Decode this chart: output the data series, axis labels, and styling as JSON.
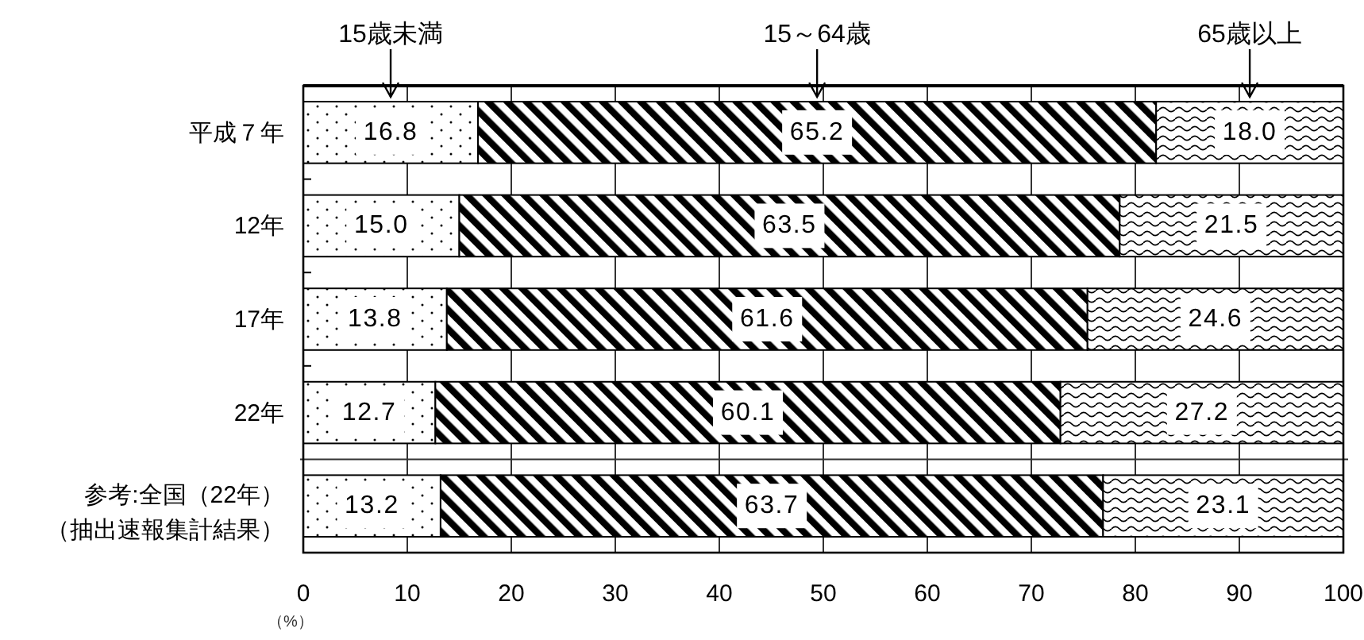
{
  "chart_data": {
    "type": "bar",
    "orientation": "horizontal",
    "stacked": true,
    "categories": [
      "平成７年",
      "12年",
      "17年",
      "22年",
      "参考:全国（22年）（抽出速報集計結果）"
    ],
    "series": [
      {
        "name": "15歳未満",
        "color": "#000000",
        "values": [
          16.8,
          15.0,
          13.8,
          12.7,
          13.2
        ],
        "value_labels": [
          "16.8",
          "15.0",
          "13.8",
          "12.7",
          "13.2"
        ]
      },
      {
        "name": "15～64歳",
        "color": "#000000",
        "values": [
          65.2,
          63.5,
          61.6,
          60.1,
          63.7
        ],
        "value_labels": [
          "65.2",
          "63.5",
          "61.6",
          "60.1",
          "63.7"
        ]
      },
      {
        "name": "65歳以上",
        "color": "#000000",
        "values": [
          18.0,
          21.5,
          24.6,
          27.2,
          23.1
        ],
        "value_labels": [
          "18.0",
          "21.5",
          "24.6",
          "27.2",
          "23.1"
        ]
      }
    ],
    "xlabel": "（%）",
    "xlim": [
      0,
      100
    ],
    "xticks": [
      0,
      10,
      20,
      30,
      40,
      50,
      60,
      70,
      80,
      90,
      100
    ],
    "grid": "x",
    "legend": "top"
  }
}
